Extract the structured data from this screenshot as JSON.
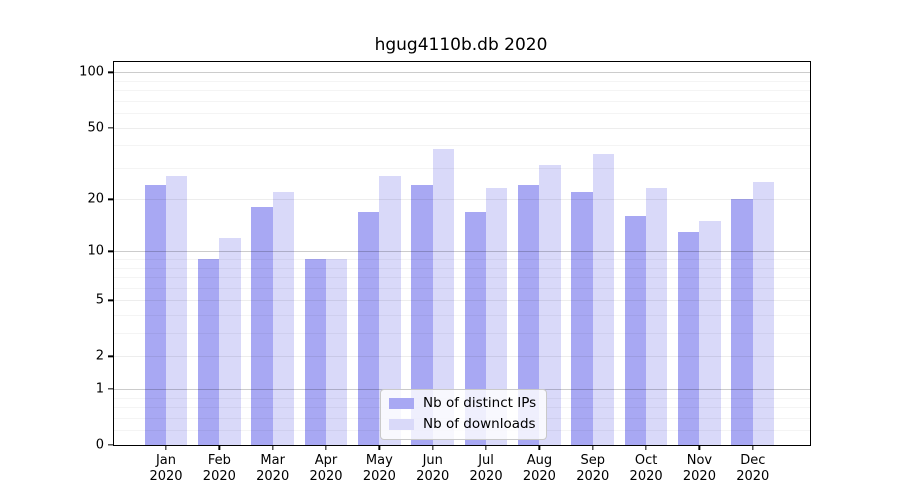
{
  "chart_data": {
    "type": "bar",
    "title": "hgug4110b.db 2020",
    "categories": [
      "Jan",
      "Feb",
      "Mar",
      "Apr",
      "May",
      "Jun",
      "Jul",
      "Aug",
      "Sep",
      "Oct",
      "Nov",
      "Dec"
    ],
    "year": "2020",
    "series": [
      {
        "name": "Nb of distinct IPs",
        "key": "ips",
        "color": "#a8a8f3",
        "values": [
          24,
          9,
          18,
          9,
          17,
          24,
          17,
          24,
          22,
          16,
          13,
          20
        ]
      },
      {
        "name": "Nb of downloads",
        "key": "downloads",
        "color": "#d9d9f9",
        "values": [
          27,
          12,
          22,
          9,
          27,
          38,
          23,
          31,
          36,
          23,
          15,
          25
        ]
      }
    ],
    "xlabel": "",
    "ylabel": "",
    "yscale": "log1p",
    "ylim": [
      0,
      114
    ],
    "yticks": [
      0,
      1,
      2,
      5,
      10,
      20,
      50,
      100
    ],
    "grid": true,
    "grid_minor": [
      0.2,
      0.4,
      0.6,
      0.8,
      3,
      4,
      6,
      7,
      8,
      9,
      30,
      40,
      60,
      70,
      80,
      90
    ],
    "grid_emphasis_at": [
      1,
      10,
      100
    ],
    "legend": {
      "position": "lower center",
      "entries": [
        "Nb of distinct IPs",
        "Nb of downloads"
      ]
    },
    "colors": {
      "bar_ips": "#a8a8f3",
      "bar_downloads": "#d9d9f9",
      "axis": "#000000",
      "background": "#ffffff",
      "grid_major": "#ededed",
      "grid_minor": "#f4f4f4",
      "grid_emphasis": "#cccccc"
    }
  }
}
